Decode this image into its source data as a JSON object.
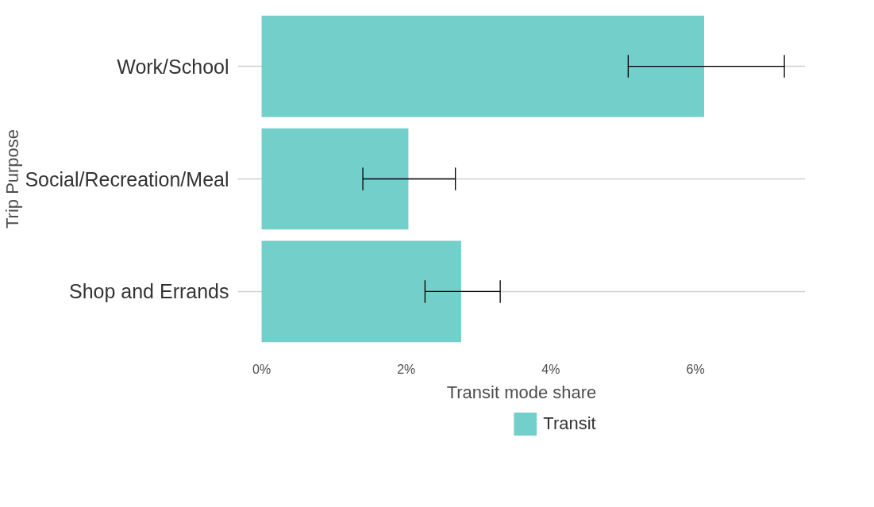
{
  "chart_data": {
    "type": "bar",
    "orientation": "horizontal",
    "xlabel": "Transit mode share",
    "ylabel": "Trip Purpose",
    "categories": [
      "Work/School",
      "Social/Recreation/Meal",
      "Shop and Errands"
    ],
    "series": [
      {
        "name": "Transit",
        "color": "#72cfca",
        "values": [
          6.12,
          2.03,
          2.76
        ],
        "errors": [
          [
            5.07,
            7.23
          ],
          [
            1.4,
            2.68
          ],
          [
            2.26,
            3.3
          ]
        ]
      }
    ],
    "xlim": [
      -0.33,
      7.52
    ],
    "xticks": [
      {
        "value": 0,
        "label": "0%"
      },
      {
        "value": 2,
        "label": "2%"
      },
      {
        "value": 4,
        "label": "4%"
      },
      {
        "value": 6,
        "label": "6%"
      }
    ],
    "grid": "y",
    "legend": "bottom"
  }
}
